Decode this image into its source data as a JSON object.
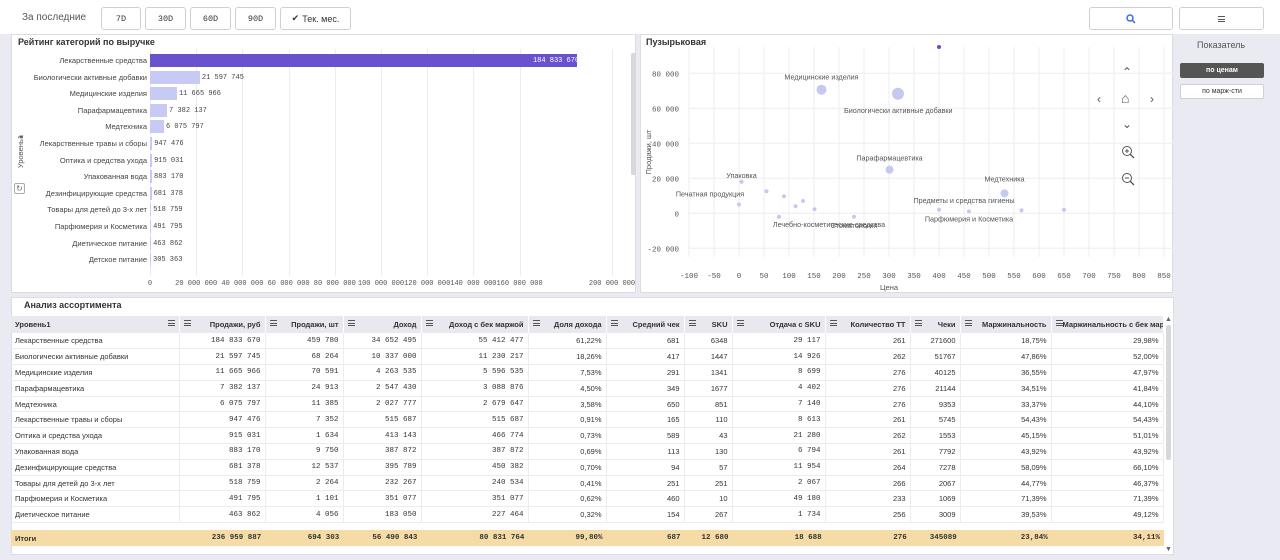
{
  "filters": {
    "label": "За последние",
    "buttons": [
      "7D",
      "30D",
      "60D",
      "90D"
    ],
    "active": "Тек. мес."
  },
  "search_icon": "search-icon",
  "menu_icon": "hamburger-icon",
  "bar_panel": {
    "title": "Рейтинг категорий по выручке",
    "dim_label": "Уровень1"
  },
  "bubble_panel": {
    "title": "Пузырьковая"
  },
  "sidebar": {
    "title": "Показатель",
    "opt1": "по ценам",
    "opt2": "по марж-сти"
  },
  "table_panel": {
    "title": "Анализ ассортимента"
  },
  "chart_data": [
    {
      "type": "bar",
      "orientation": "horizontal",
      "title": "Рейтинг категорий по выручке",
      "ylabel": "Уровень1",
      "categories": [
        "Лекарственные средства",
        "Биологически активные добавки",
        "Медицинские изделия",
        "Парафармацевтика",
        "Медтехника",
        "Лекарственные травы и сборы",
        "Оптика и средства ухода",
        "Упакованная вода",
        "Дезинфицирующие средства",
        "Товары для детей до 3-х лет",
        "Парфюмерия и Косметика",
        "Диетическое питание",
        "Детское питание"
      ],
      "values": [
        184833670,
        21597745,
        11665966,
        7382137,
        6075797,
        947476,
        915031,
        883170,
        681378,
        518759,
        491795,
        463862,
        305363
      ],
      "labels": [
        "184 833 670",
        "21 597 745",
        "11 665 966",
        "7 382 137",
        "6 075 797",
        "947 476",
        "915 031",
        "883 170",
        "681 378",
        "518 759",
        "491 795",
        "463 862",
        "305 363"
      ],
      "xticks": [
        "0",
        "20 000 000",
        "40 000 000",
        "60 000 000",
        "80 000 000",
        "100 000 000",
        "120 000 000",
        "140 000 000",
        "160 000 000",
        "200 000 000"
      ],
      "xlim": [
        0,
        200000000
      ]
    },
    {
      "type": "scatter",
      "title": "Пузырьковая",
      "xlabel": "Цена",
      "ylabel": "Продажи, шт",
      "xlim": [
        -100,
        870
      ],
      "ylim": [
        -25000,
        95000
      ],
      "xticks": [
        "-100",
        "-50",
        "0",
        "50",
        "100",
        "150",
        "200",
        "250",
        "300",
        "350",
        "400",
        "450",
        "500",
        "550",
        "600",
        "650",
        "700",
        "750",
        "800",
        "850"
      ],
      "yticks": [
        "80 000",
        "60 000",
        "40 000",
        "20 000",
        "0",
        "-20 000"
      ],
      "points": [
        {
          "label": "Медицинские изделия",
          "x": 165,
          "y": 70591,
          "r": 5
        },
        {
          "label": "Биологически активные добавки",
          "x": 318,
          "y": 68264,
          "r": 6
        },
        {
          "label": "Парафармацевтика",
          "x": 301,
          "y": 24913,
          "r": 4
        },
        {
          "label": "Медтехника",
          "x": 531,
          "y": 11385,
          "r": 4
        },
        {
          "label": "Упаковка",
          "x": 5,
          "y": 18000,
          "r": 2
        },
        {
          "label": "Печатная продукция",
          "x": 0,
          "y": 5000,
          "r": 2
        },
        {
          "label": "Лечебно-косметические средства",
          "x": 80,
          "y": -2000,
          "r": 2
        },
        {
          "label": "Стоматология",
          "x": 230,
          "y": -2000,
          "r": 2
        },
        {
          "label": "Предметы и средства гигиены",
          "x": 400,
          "y": 2000,
          "r": 2
        },
        {
          "label": "Парфюмерия и Косметика",
          "x": 460,
          "y": 1101,
          "r": 2
        },
        {
          "label": "",
          "x": 55,
          "y": 12537,
          "r": 2
        },
        {
          "label": "",
          "x": 90,
          "y": 9750,
          "r": 2
        },
        {
          "label": "",
          "x": 113,
          "y": 4000,
          "r": 2
        },
        {
          "label": "",
          "x": 128,
          "y": 7000,
          "r": 2
        },
        {
          "label": "",
          "x": 151,
          "y": 2264,
          "r": 2
        },
        {
          "label": "",
          "x": 565,
          "y": 1634,
          "r": 2
        },
        {
          "label": "",
          "x": 650,
          "y": 2000,
          "r": 2
        },
        {
          "label": "",
          "x": 400,
          "y": 95000,
          "r": 2
        },
        {
          "label": "",
          "x": 870,
          "y": 0,
          "r": 1
        }
      ]
    }
  ],
  "table": {
    "headers": [
      "Уровень1",
      "Продажи, руб",
      "Продажи, шт",
      "Доход",
      "Доход с бек маржой",
      "Доля дохода",
      "Средний чек",
      "SKU",
      "Отдача с SKU",
      "Количество ТТ",
      "Чеки",
      "Маржинальность",
      "Маржинальность с бек маржой"
    ],
    "rows": [
      [
        "Лекарственные средства",
        "184 833 670",
        "459 780",
        "34 652 495",
        "55 412 477",
        "61,22%",
        "681",
        "6348",
        "29 117",
        "261",
        "271600",
        "18,75%",
        "29,98%"
      ],
      [
        "Биологически активные добавки",
        "21 597 745",
        "68 264",
        "10 337 000",
        "11 230 217",
        "18,26%",
        "417",
        "1447",
        "14 926",
        "262",
        "51767",
        "47,86%",
        "52,00%"
      ],
      [
        "Медицинские изделия",
        "11 665 966",
        "70 591",
        "4 263 535",
        "5 596 535",
        "7,53%",
        "291",
        "1341",
        "8 699",
        "276",
        "40125",
        "36,55%",
        "47,97%"
      ],
      [
        "Парафармацевтика",
        "7 382 137",
        "24 913",
        "2 547 430",
        "3 088 876",
        "4,50%",
        "349",
        "1677",
        "4 402",
        "276",
        "21144",
        "34,51%",
        "41,84%"
      ],
      [
        "Медтехника",
        "6 075 797",
        "11 385",
        "2 027 777",
        "2 679 647",
        "3,58%",
        "650",
        "851",
        "7 140",
        "276",
        "9353",
        "33,37%",
        "44,10%"
      ],
      [
        "Лекарственные травы и сборы",
        "947 476",
        "7 352",
        "515 687",
        "515 687",
        "0,91%",
        "165",
        "110",
        "8 613",
        "261",
        "5745",
        "54,43%",
        "54,43%"
      ],
      [
        "Оптика и средства ухода",
        "915 031",
        "1 634",
        "413 143",
        "466 774",
        "0,73%",
        "589",
        "43",
        "21 280",
        "262",
        "1553",
        "45,15%",
        "51,01%"
      ],
      [
        "Упакованная вода",
        "883 170",
        "9 750",
        "387 872",
        "387 872",
        "0,69%",
        "113",
        "130",
        "6 794",
        "261",
        "7792",
        "43,92%",
        "43,92%"
      ],
      [
        "Дезинфицирующие средства",
        "681 378",
        "12 537",
        "395 789",
        "450 382",
        "0,70%",
        "94",
        "57",
        "11 954",
        "264",
        "7278",
        "58,09%",
        "66,10%"
      ],
      [
        "Товары для детей до 3-х лет",
        "518 759",
        "2 264",
        "232 267",
        "240 534",
        "0,41%",
        "251",
        "251",
        "2 067",
        "266",
        "2067",
        "44,77%",
        "46,37%"
      ],
      [
        "Парфюмерия и Косметика",
        "491 795",
        "1 101",
        "351 077",
        "351 077",
        "0,62%",
        "460",
        "10",
        "49 180",
        "233",
        "1069",
        "71,39%",
        "71,39%"
      ],
      [
        "Диетическое питание",
        "463 862",
        "4 056",
        "183 050",
        "227 464",
        "0,32%",
        "154",
        "267",
        "1 734",
        "256",
        "3009",
        "39,53%",
        "49,12%"
      ]
    ],
    "totals": [
      "Итоги",
      "236 959 887",
      "694 303",
      "56 490 843",
      "80 831 764",
      "99,80%",
      "687",
      "12 680",
      "18 688",
      "276",
      "345089",
      "23,84%",
      "34,11%"
    ]
  }
}
